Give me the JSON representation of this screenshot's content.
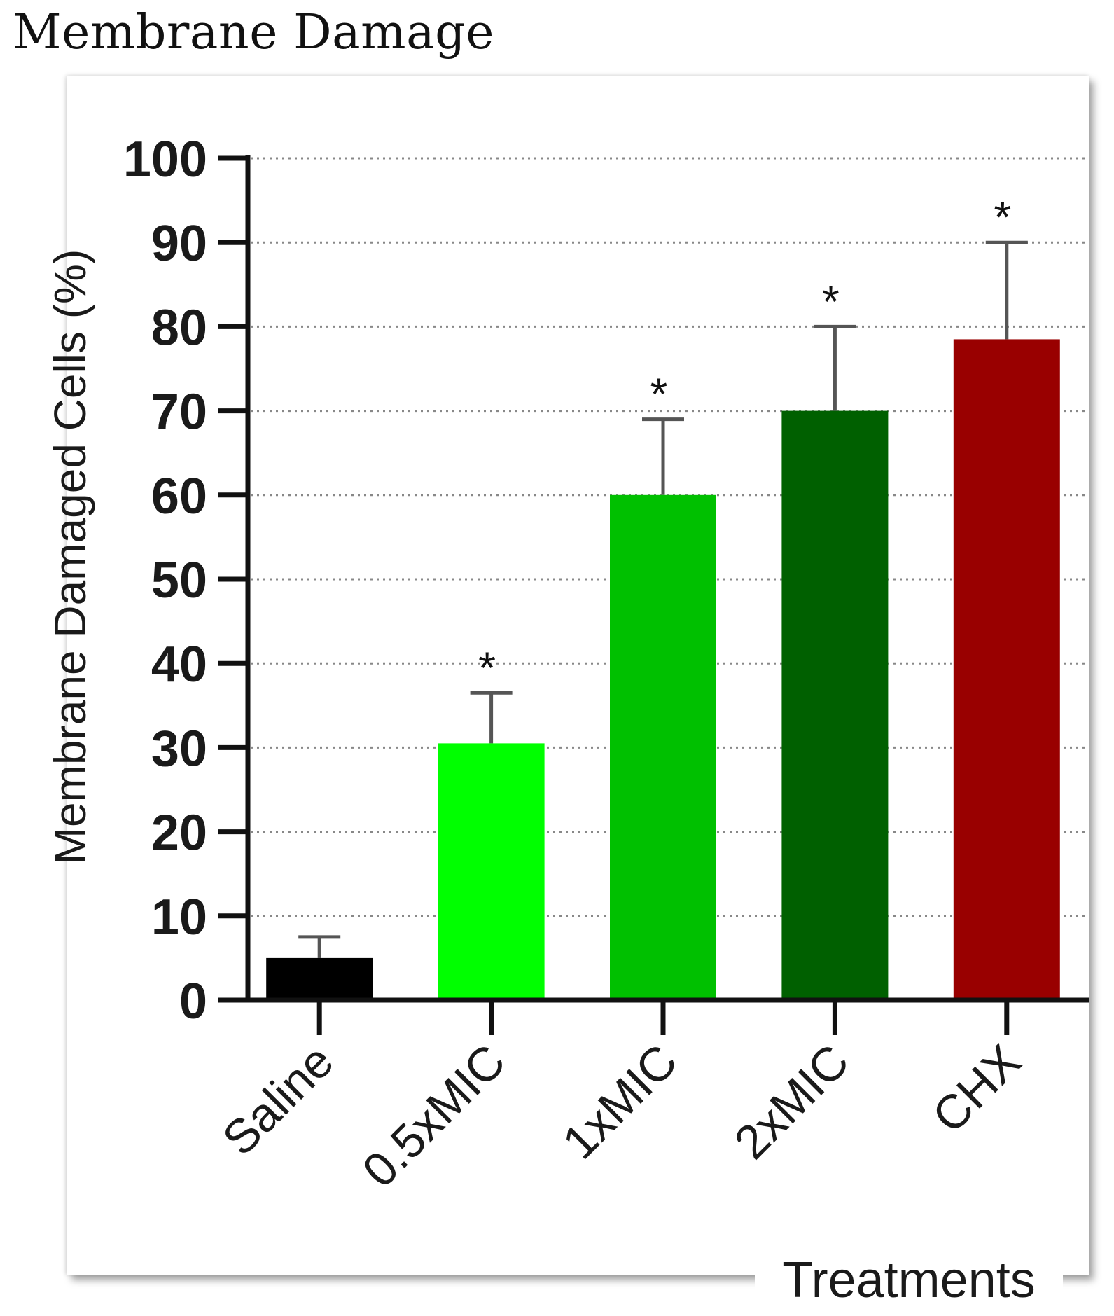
{
  "chart_data": {
    "type": "bar",
    "title": "Membrane Damage",
    "ylabel": "Membrane Damaged Cells (%)",
    "xlabel": "Treatments",
    "ylim": [
      0,
      100
    ],
    "yticks": [
      0,
      10,
      20,
      30,
      40,
      50,
      60,
      70,
      80,
      90,
      100
    ],
    "grid": true,
    "categories": [
      "Saline",
      "0.5xMIC",
      "1xMIC",
      "2xMIC",
      "CHX"
    ],
    "values": [
      5,
      30.5,
      60,
      70,
      78.5
    ],
    "errors": [
      2.5,
      6,
      9,
      10,
      11.5
    ],
    "significance": [
      "",
      "*",
      "*",
      "*",
      "*"
    ],
    "colors": [
      "#000000",
      "#00ff00",
      "#00c000",
      "#006000",
      "#990000"
    ]
  }
}
